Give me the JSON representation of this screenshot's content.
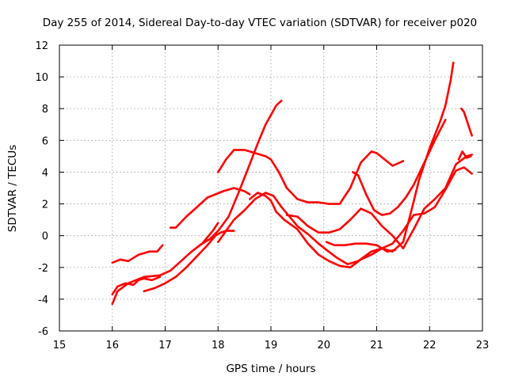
{
  "chart_data": {
    "type": "scatter",
    "title": "Day 255 of 2014, Sidereal Day-to-day VTEC variation (SDTVAR) for receiver p020",
    "xlabel": "GPS time / hours",
    "ylabel": "SDTVAR / TECUs",
    "xlim": [
      15,
      23
    ],
    "ylim": [
      -6,
      12
    ],
    "xticks": [
      15,
      16,
      17,
      18,
      19,
      20,
      21,
      22,
      23
    ],
    "yticks": [
      -6,
      -4,
      -2,
      0,
      2,
      4,
      6,
      8,
      10,
      12
    ],
    "grid": true,
    "legend": "none",
    "marker": "+",
    "color": "#ff0000",
    "series": [
      {
        "x": [
          16.0,
          16.15,
          16.3,
          16.5,
          16.7,
          16.85,
          16.95
        ],
        "y": [
          -1.7,
          -1.5,
          -1.6,
          -1.2,
          -1.0,
          -1.0,
          -0.6
        ]
      },
      {
        "x": [
          16.0,
          16.1,
          16.3,
          16.6,
          16.9,
          17.1,
          17.3,
          17.5,
          17.7,
          17.9,
          18.0
        ],
        "y": [
          -4.3,
          -3.5,
          -3.0,
          -2.6,
          -2.5,
          -2.2,
          -1.6,
          -1.0,
          -0.5,
          0.3,
          0.8
        ]
      },
      {
        "x": [
          16.0,
          16.1,
          16.25,
          16.4,
          16.5,
          16.6,
          16.75,
          16.9
        ],
        "y": [
          -3.7,
          -3.2,
          -3.0,
          -3.1,
          -2.8,
          -2.7,
          -2.8,
          -2.6
        ]
      },
      {
        "x": [
          16.6,
          16.8,
          17.0,
          17.2,
          17.4,
          17.6,
          17.8,
          17.95,
          18.05,
          18.15,
          18.3
        ],
        "y": [
          -3.5,
          -3.3,
          -3.0,
          -2.6,
          -2.0,
          -1.3,
          -0.6,
          0.0,
          0.2,
          0.3,
          0.3
        ]
      },
      {
        "x": [
          17.1,
          17.2,
          17.4,
          17.6,
          17.8,
          17.95,
          18.1,
          18.3,
          18.5,
          18.6
        ],
        "y": [
          0.5,
          0.5,
          1.2,
          1.8,
          2.4,
          2.6,
          2.8,
          3.0,
          2.8,
          2.6
        ]
      },
      {
        "x": [
          17.65,
          17.85,
          18.0,
          18.2,
          18.4,
          18.6,
          18.75,
          18.9,
          19.0,
          19.1,
          19.2
        ],
        "y": [
          -0.6,
          -0.2,
          0.3,
          1.2,
          2.8,
          4.5,
          5.8,
          7.0,
          7.6,
          8.2,
          8.5
        ]
      },
      {
        "x": [
          18.0,
          18.15,
          18.3,
          18.5,
          18.7,
          18.9,
          19.05,
          19.2,
          19.35,
          19.5,
          19.7,
          19.9,
          20.05,
          20.25,
          20.45,
          20.65,
          20.9,
          21.1,
          21.3,
          21.5,
          21.65,
          21.8,
          22.0,
          22.2,
          22.3,
          22.4,
          22.45
        ],
        "y": [
          -0.4,
          0.3,
          1.0,
          1.6,
          2.3,
          2.7,
          2.5,
          1.8,
          1.2,
          0.6,
          0.1,
          -0.5,
          -0.9,
          -1.4,
          -1.8,
          -1.6,
          -1.0,
          -0.8,
          -1.0,
          -0.4,
          1.5,
          3.5,
          5.5,
          7.2,
          8.2,
          9.8,
          10.9
        ]
      },
      {
        "x": [
          18.0,
          18.15,
          18.3,
          18.5,
          18.7,
          18.9,
          19.0,
          19.15,
          19.3,
          19.5,
          19.7,
          19.9,
          20.1,
          20.3,
          20.5,
          20.7,
          20.9,
          21.0,
          21.15,
          21.3,
          21.5
        ],
        "y": [
          4.0,
          4.8,
          5.4,
          5.4,
          5.2,
          5.0,
          4.8,
          4.0,
          3.0,
          2.3,
          2.1,
          2.1,
          2.0,
          2.0,
          3.0,
          4.6,
          5.3,
          5.2,
          4.8,
          4.4,
          4.7
        ]
      },
      {
        "x": [
          18.6,
          18.75,
          18.9,
          19.0,
          19.1,
          19.25,
          19.5,
          19.7,
          19.9,
          20.1,
          20.3,
          20.5,
          20.7,
          20.9,
          21.1,
          21.3,
          21.5,
          21.7,
          21.9,
          22.1,
          22.3,
          22.5,
          22.65,
          22.8
        ],
        "y": [
          2.3,
          2.7,
          2.5,
          2.2,
          1.5,
          1.0,
          0.4,
          -0.5,
          -1.2,
          -1.6,
          -1.9,
          -2.0,
          -1.5,
          -1.2,
          -0.8,
          -0.5,
          0.3,
          1.3,
          1.4,
          1.8,
          2.9,
          4.1,
          4.3,
          3.9
        ]
      },
      {
        "x": [
          19.3,
          19.5,
          19.7,
          19.9,
          20.1,
          20.3,
          20.5,
          20.7,
          20.9,
          21.1,
          21.3,
          21.5,
          21.7,
          21.9,
          22.1,
          22.3,
          22.5,
          22.7,
          22.8
        ],
        "y": [
          1.3,
          1.2,
          0.6,
          0.2,
          0.2,
          0.4,
          1.0,
          1.7,
          1.4,
          0.6,
          0.0,
          -0.8,
          0.4,
          1.7,
          2.3,
          3.0,
          4.5,
          5.0,
          5.1
        ]
      },
      {
        "x": [
          20.05,
          20.2,
          20.4,
          20.6,
          20.8,
          21.0,
          21.2,
          21.35
        ],
        "y": [
          -0.4,
          -0.6,
          -0.6,
          -0.5,
          -0.5,
          -0.6,
          -1.0,
          -0.9
        ]
      },
      {
        "x": [
          20.55,
          20.65,
          20.8,
          20.95,
          21.1,
          21.25,
          21.4,
          21.55,
          21.7,
          21.9,
          22.1,
          22.3
        ],
        "y": [
          4.0,
          3.8,
          2.6,
          1.6,
          1.3,
          1.4,
          1.8,
          2.4,
          3.2,
          4.6,
          6.0,
          7.3
        ]
      },
      {
        "x": [
          22.6,
          22.65,
          22.7,
          22.75,
          22.8
        ],
        "y": [
          8.0,
          7.8,
          7.3,
          6.8,
          6.3
        ]
      },
      {
        "x": [
          22.55,
          22.62,
          22.7,
          22.78
        ],
        "y": [
          4.8,
          5.3,
          4.9,
          5.0
        ]
      }
    ]
  }
}
